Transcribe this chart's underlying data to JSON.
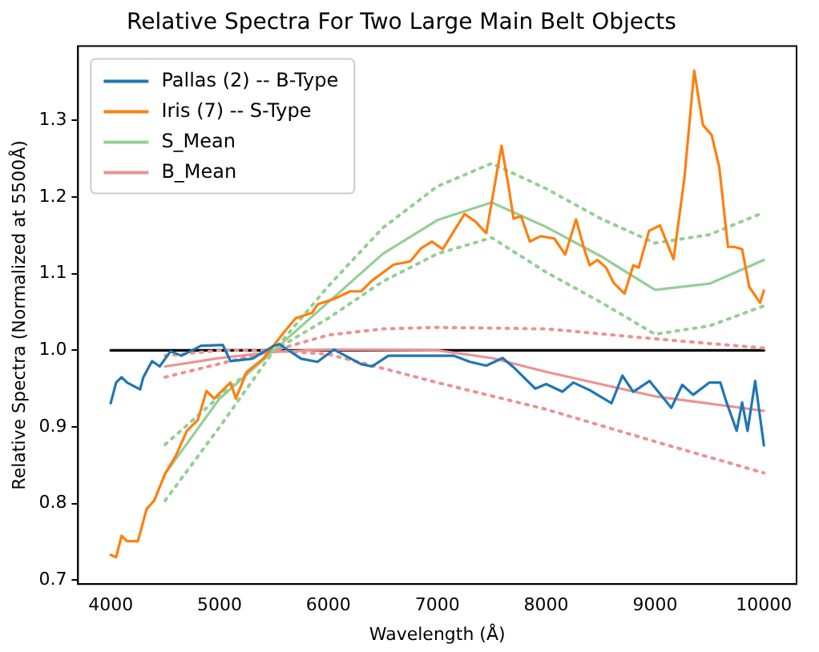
{
  "chart_data": {
    "type": "line",
    "title": "Relative Spectra For Two Large Main Belt Objects",
    "xlabel": "Wavelength (Å)",
    "ylabel": "Relative Spectra (Normalized at 5500Å)",
    "xlim": [
      3700,
      10300
    ],
    "ylim": [
      0.695,
      1.397
    ],
    "xticks": [
      4000,
      5000,
      6000,
      7000,
      8000,
      9000,
      10000
    ],
    "yticks": [
      0.7,
      0.8,
      0.9,
      {
        "value": 1,
        "label": "1.0"
      },
      1.1,
      1.2,
      1.3
    ],
    "grid": false,
    "legend": "top left",
    "marker": "none",
    "series": [
      {
        "name": "Pallas (2) -- B-Type",
        "color": "#1f77b4",
        "line_style": "solid",
        "x": [
          4000,
          4050,
          4100,
          4150,
          4270,
          4300,
          4380,
          4450,
          4550,
          4650,
          4830,
          5030,
          5100,
          5300,
          5500,
          5550,
          5750,
          5900,
          6050,
          6300,
          6400,
          6550,
          6950,
          7150,
          7300,
          7450,
          7600,
          7700,
          7900,
          8000,
          8150,
          8250,
          8400,
          8600,
          8700,
          8800,
          8950,
          9150,
          9250,
          9350,
          9500,
          9600,
          9650,
          9750,
          9800,
          9850,
          9920,
          10000
        ],
        "values": [
          0.931,
          0.958,
          0.965,
          0.958,
          0.949,
          0.965,
          0.986,
          0.979,
          0.999,
          0.993,
          1.006,
          1.007,
          0.986,
          0.989,
          1.006,
          1.008,
          0.989,
          0.985,
          1.001,
          0.982,
          0.979,
          0.993,
          0.993,
          0.993,
          0.985,
          0.98,
          0.99,
          0.978,
          0.95,
          0.956,
          0.946,
          0.958,
          0.948,
          0.931,
          0.967,
          0.946,
          0.96,
          0.925,
          0.955,
          0.942,
          0.958,
          0.958,
          0.935,
          0.895,
          0.932,
          0.895,
          0.96,
          0.876
        ]
      },
      {
        "name": "Iris (7) -- S-Type",
        "color": "#ff7f0e",
        "line_style": "solid",
        "x": [
          4000,
          4050,
          4100,
          4150,
          4250,
          4330,
          4400,
          4500,
          4600,
          4700,
          4800,
          4880,
          4950,
          5100,
          5150,
          5250,
          5400,
          5500,
          5600,
          5700,
          5850,
          5900,
          6050,
          6200,
          6300,
          6400,
          6600,
          6750,
          6850,
          6950,
          7050,
          7250,
          7350,
          7450,
          7590,
          7650,
          7700,
          7770,
          7850,
          7950,
          8075,
          8175,
          8275,
          8350,
          8400,
          8470,
          8550,
          8620,
          8720,
          8800,
          8850,
          8945,
          9045,
          9170,
          9270,
          9360,
          9440,
          9520,
          9590,
          9670,
          9730,
          9800,
          9865,
          9965,
          10000
        ],
        "values": [
          0.733,
          0.73,
          0.758,
          0.751,
          0.751,
          0.793,
          0.804,
          0.839,
          0.863,
          0.895,
          0.909,
          0.947,
          0.937,
          0.958,
          0.937,
          0.972,
          0.989,
          1.007,
          1.025,
          1.042,
          1.049,
          1.06,
          1.067,
          1.077,
          1.077,
          1.091,
          1.112,
          1.116,
          1.133,
          1.142,
          1.132,
          1.178,
          1.168,
          1.153,
          1.267,
          1.218,
          1.172,
          1.175,
          1.142,
          1.149,
          1.146,
          1.125,
          1.171,
          1.132,
          1.111,
          1.118,
          1.108,
          1.088,
          1.074,
          1.111,
          1.108,
          1.156,
          1.163,
          1.119,
          1.225,
          1.365,
          1.294,
          1.281,
          1.239,
          1.135,
          1.135,
          1.132,
          1.083,
          1.062,
          1.078
        ]
      },
      {
        "name": "S_Mean",
        "color": "#95cf95",
        "line_style": "solid",
        "x": [
          4500,
          5000,
          5500,
          6000,
          6500,
          7000,
          7500,
          8000,
          8500,
          9000,
          9500,
          10000
        ],
        "values": [
          0.839,
          0.937,
          1.0,
          1.063,
          1.126,
          1.17,
          1.193,
          1.161,
          1.123,
          1.079,
          1.087,
          1.118
        ]
      },
      {
        "name": "B_Mean",
        "color": "#ea9393",
        "line_style": "solid",
        "x": [
          4500,
          5000,
          5500,
          6000,
          7000,
          7500,
          8000,
          9000,
          10000
        ],
        "values": [
          0.979,
          0.99,
          0.998,
          1.001,
          1.0,
          0.99,
          0.972,
          0.94,
          0.921
        ]
      },
      {
        "color": "#95cf95",
        "line_style": "dotted",
        "x": [
          4500,
          5000,
          5500,
          6000,
          6500,
          7000,
          7500,
          8000,
          8500,
          9000,
          9500,
          10000
        ],
        "values": [
          0.877,
          0.94,
          1.0,
          1.084,
          1.16,
          1.214,
          1.244,
          1.211,
          1.172,
          1.14,
          1.151,
          1.18
        ]
      },
      {
        "color": "#95cf95",
        "line_style": "dotted",
        "x": [
          4500,
          5000,
          5500,
          6000,
          6500,
          7000,
          7500,
          8000,
          8500,
          9000,
          9500,
          10000
        ],
        "values": [
          0.804,
          0.9,
          1.0,
          1.042,
          1.09,
          1.126,
          1.147,
          1.102,
          1.063,
          1.021,
          1.032,
          1.058
        ]
      },
      {
        "color": "#ea9393",
        "line_style": "dotted",
        "x": [
          4500,
          5000,
          5500,
          6000,
          6500,
          7000,
          8000,
          9000,
          10000
        ],
        "values": [
          0.993,
          1.0,
          1.0,
          1.02,
          1.028,
          1.03,
          1.028,
          1.015,
          1.003
        ]
      },
      {
        "color": "#ea9393",
        "line_style": "dotted",
        "x": [
          4500,
          5500,
          6000,
          7000,
          8000,
          9000,
          10000
        ],
        "values": [
          0.965,
          1.0,
          0.995,
          0.958,
          0.923,
          0.881,
          0.84
        ]
      },
      {
        "color": "#000000",
        "line_style": "solid",
        "x": [
          4000,
          10000
        ],
        "values": [
          1.0,
          1.0
        ]
      }
    ]
  }
}
